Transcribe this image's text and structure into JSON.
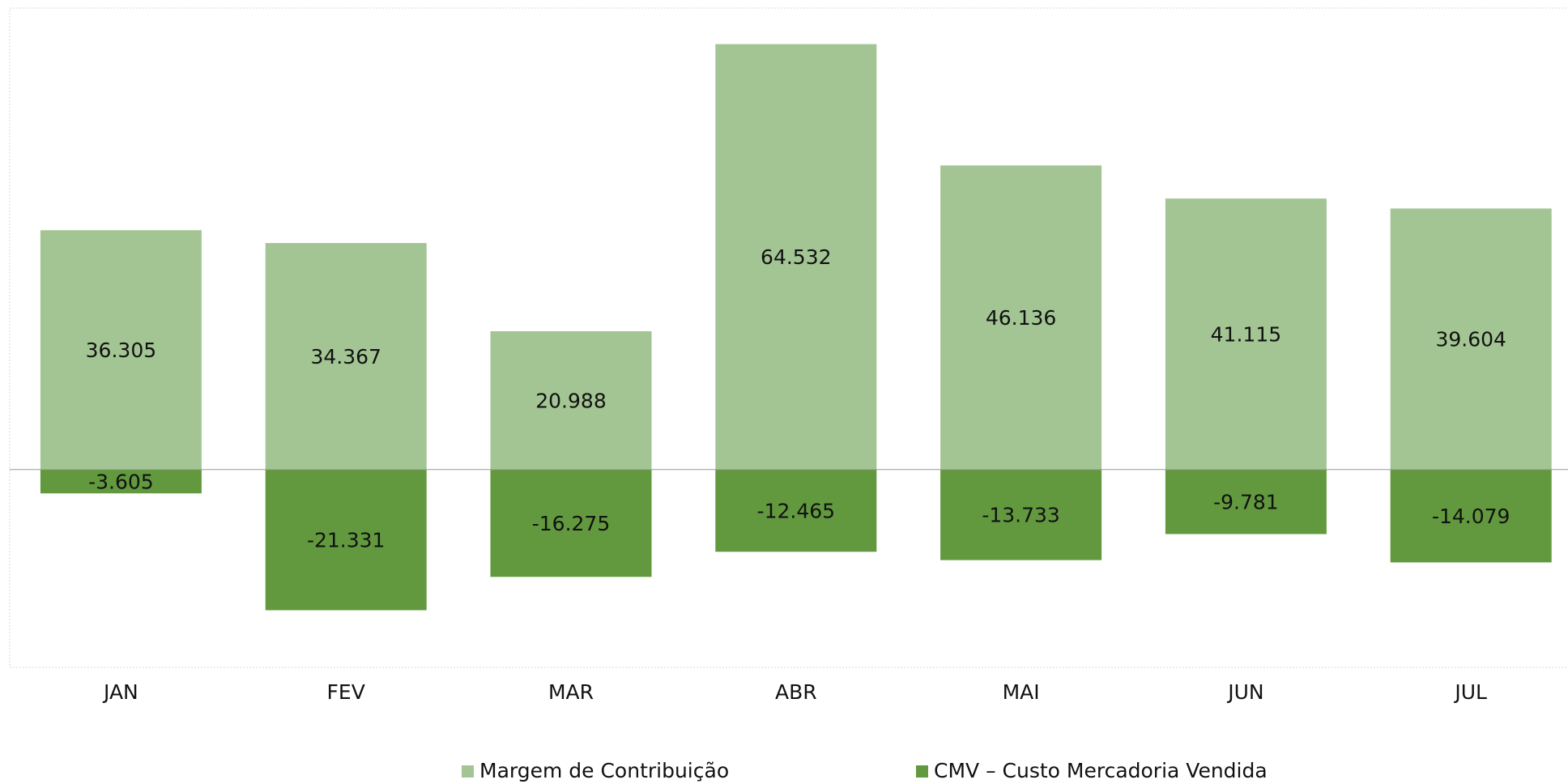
{
  "chart_data": {
    "type": "bar",
    "categories": [
      "JAN",
      "FEV",
      "MAR",
      "ABR",
      "MAI",
      "JUN",
      "JUL"
    ],
    "series": [
      {
        "name": "Margem de Contribuição",
        "color": "#a3c593",
        "values": [
          36305,
          34367,
          20988,
          64532,
          46136,
          41115,
          39604
        ],
        "value_labels": [
          "36.305",
          "34.367",
          "20.988",
          "64.532",
          "46.136",
          "41.115",
          "39.604"
        ]
      },
      {
        "name": "CMV – Custo Mercadoria Vendida",
        "color": "#62993e",
        "values": [
          -3605,
          -21331,
          -16275,
          -12465,
          -13733,
          -9781,
          -14079
        ],
        "value_labels": [
          "-3.605",
          "-21.331",
          "-16.275",
          "-12.465",
          "-13.733",
          "-9.781",
          "-14.079"
        ]
      }
    ],
    "ylim": [
      -30000,
      70000
    ]
  }
}
